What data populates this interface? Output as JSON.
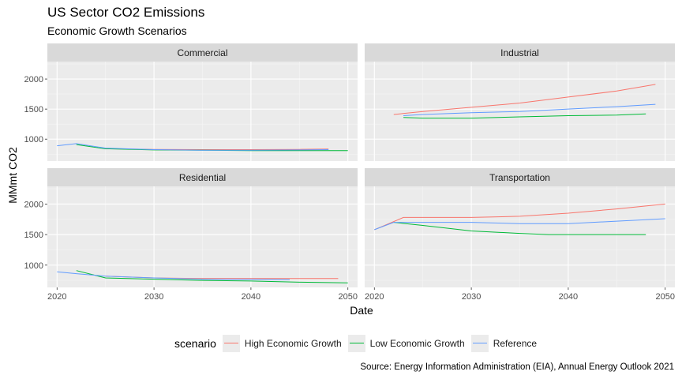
{
  "title": "US Sector CO2 Emissions",
  "subtitle": "Economic Growth Scenarios",
  "caption": "Source: Energy Information Administration (EIA), Annual Energy Outlook 2021",
  "xlabel": "Date",
  "ylabel": "MMmt CO2",
  "legend": {
    "title": "scenario",
    "items": [
      {
        "label": "High Economic Growth",
        "color": "#F8766D"
      },
      {
        "label": "Low Economic Growth",
        "color": "#00BA38"
      },
      {
        "label": "Reference",
        "color": "#619CFF"
      }
    ]
  },
  "chart_data": {
    "type": "line",
    "facet_layout": "2x2",
    "x_ticks": [
      "2020",
      "2030",
      "2040",
      "2050"
    ],
    "xlim": [
      2019,
      2051
    ],
    "y_ticks": [
      "1000",
      "1500",
      "2000"
    ],
    "ylim": [
      635,
      2290
    ],
    "grid": true,
    "legend_position": "bottom",
    "panels": [
      {
        "name": "Commercial",
        "series": [
          {
            "name": "High Economic Growth",
            "x": [
              2025,
              2030,
              2035,
              2040,
              2045,
              2048
            ],
            "y": [
              840,
              830,
              825,
              825,
              830,
              835
            ]
          },
          {
            "name": "Low Economic Growth",
            "x": [
              2022,
              2025,
              2030,
              2035,
              2040,
              2045,
              2050
            ],
            "y": [
              910,
              840,
              820,
              815,
              810,
              810,
              808
            ]
          },
          {
            "name": "Reference",
            "x": [
              2020,
              2022,
              2025,
              2030,
              2035,
              2040,
              2045,
              2048
            ],
            "y": [
              890,
              925,
              850,
              825,
              815,
              815,
              820,
              825
            ]
          }
        ]
      },
      {
        "name": "Industrial",
        "series": [
          {
            "name": "High Economic Growth",
            "x": [
              2022,
              2025,
              2030,
              2035,
              2040,
              2045,
              2049
            ],
            "y": [
              1410,
              1460,
              1530,
              1600,
              1700,
              1800,
              1910
            ]
          },
          {
            "name": "Low Economic Growth",
            "x": [
              2023,
              2025,
              2030,
              2035,
              2040,
              2045,
              2048
            ],
            "y": [
              1360,
              1350,
              1350,
              1370,
              1390,
              1400,
              1420
            ]
          },
          {
            "name": "Reference",
            "x": [
              2023,
              2025,
              2030,
              2035,
              2040,
              2045,
              2049
            ],
            "y": [
              1390,
              1410,
              1440,
              1460,
              1500,
              1540,
              1580
            ]
          }
        ]
      },
      {
        "name": "Residential",
        "series": [
          {
            "name": "High Economic Growth",
            "x": [
              2025,
              2030,
              2035,
              2040,
              2045,
              2049
            ],
            "y": [
              820,
              790,
              780,
              780,
              780,
              780
            ]
          },
          {
            "name": "Low Economic Growth",
            "x": [
              2022,
              2025,
              2030,
              2035,
              2040,
              2045,
              2050
            ],
            "y": [
              910,
              790,
              770,
              750,
              740,
              720,
              710
            ]
          },
          {
            "name": "Reference",
            "x": [
              2020,
              2022,
              2025,
              2030,
              2035,
              2040,
              2044
            ],
            "y": [
              890,
              860,
              820,
              790,
              770,
              765,
              760
            ]
          }
        ]
      },
      {
        "name": "Transportation",
        "series": [
          {
            "name": "High Economic Growth",
            "x": [
              2020,
              2023,
              2025,
              2030,
              2035,
              2040,
              2045,
              2050
            ],
            "y": [
              1580,
              1780,
              1780,
              1780,
              1800,
              1850,
              1920,
              2000
            ]
          },
          {
            "name": "Low Economic Growth",
            "x": [
              2022,
              2025,
              2030,
              2035,
              2038,
              2040,
              2045,
              2048
            ],
            "y": [
              1700,
              1650,
              1560,
              1520,
              1500,
              1500,
              1500,
              1500
            ]
          },
          {
            "name": "Reference",
            "x": [
              2020,
              2022,
              2025,
              2030,
              2035,
              2040,
              2045,
              2050
            ],
            "y": [
              1580,
              1700,
              1700,
              1700,
              1680,
              1680,
              1720,
              1760
            ]
          }
        ]
      }
    ]
  }
}
